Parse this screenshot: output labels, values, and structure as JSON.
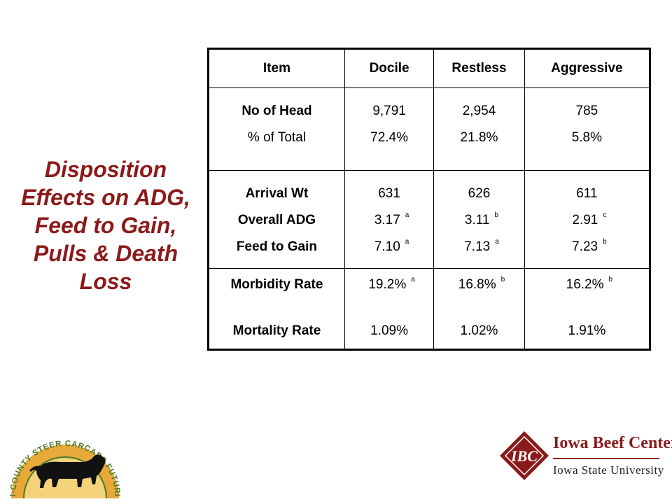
{
  "title": "Disposition Effects on ADG, Feed to Gain, Pulls & Death Loss",
  "table": {
    "headers": [
      "Item",
      "Docile",
      "Restless",
      "Aggressive"
    ],
    "group1": {
      "labels": [
        "No of Head",
        "% of Total"
      ],
      "docile": [
        "9,791",
        "72.4%"
      ],
      "restless": [
        "2,954",
        "21.8%"
      ],
      "aggressive": [
        "785",
        "5.8%"
      ]
    },
    "group2": {
      "labels": [
        "Arrival Wt",
        "Overall ADG",
        "Feed to Gain"
      ],
      "docile": [
        "631",
        "3.17",
        "7.10"
      ],
      "docile_sig": [
        "",
        "a",
        "a"
      ],
      "restless": [
        "626",
        "3.11",
        "7.13"
      ],
      "restless_sig": [
        "",
        "b",
        "a"
      ],
      "aggressive": [
        "611",
        "2.91",
        "7.23"
      ],
      "aggressive_sig": [
        "",
        "c",
        "b"
      ]
    },
    "group3": {
      "labels": [
        "Morbidity Rate",
        "Mortality Rate"
      ],
      "docile": [
        "19.2%",
        "1.09%"
      ],
      "docile_sig": [
        "a",
        ""
      ],
      "restless": [
        "16.8%",
        "1.02%"
      ],
      "restless_sig": [
        "b",
        ""
      ],
      "aggressive": [
        "16.2%",
        "1.91%"
      ],
      "aggressive_sig": [
        "b",
        ""
      ]
    }
  },
  "logos": {
    "left_text": "TRI-COUNTY STEER CARCASS FUTURITY",
    "right_mark": "IBC",
    "right_line1": "Iowa Beef Center",
    "right_line2": "Iowa State University"
  },
  "colors": {
    "title": "#8b1a1a",
    "brand_red": "#8b1a1a",
    "futurity_gold": "#e8a93a",
    "futurity_green": "#4a7a2a"
  }
}
